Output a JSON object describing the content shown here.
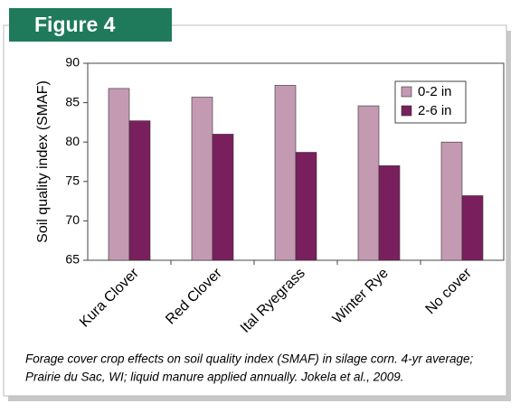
{
  "chart_data": {
    "type": "bar",
    "figure_label": "Figure 4",
    "y_label": "Soil quality index (SMAF)",
    "categories": [
      "Kura Clover",
      "Red Clover",
      "Ital Ryegrass",
      "Winter Rye",
      "No cover"
    ],
    "series": [
      {
        "name": "0-2 in",
        "color": "#c49ab2",
        "values": [
          86.8,
          85.7,
          87.2,
          84.6,
          80.0
        ]
      },
      {
        "name": "2-6 in",
        "color": "#7a1f5e",
        "values": [
          82.7,
          81.0,
          78.7,
          77.0,
          73.2
        ]
      }
    ],
    "ylim": [
      65,
      90
    ],
    "yticks": [
      65,
      70,
      75,
      80,
      85,
      90
    ],
    "legend": "upper right",
    "caption": [
      "Forage cover crop effects on soil quality index (SMAF) in silage corn. 4-yr average;",
      "Prairie du Sac, WI; liquid manure applied annually. Jokela et al., 2009."
    ]
  }
}
